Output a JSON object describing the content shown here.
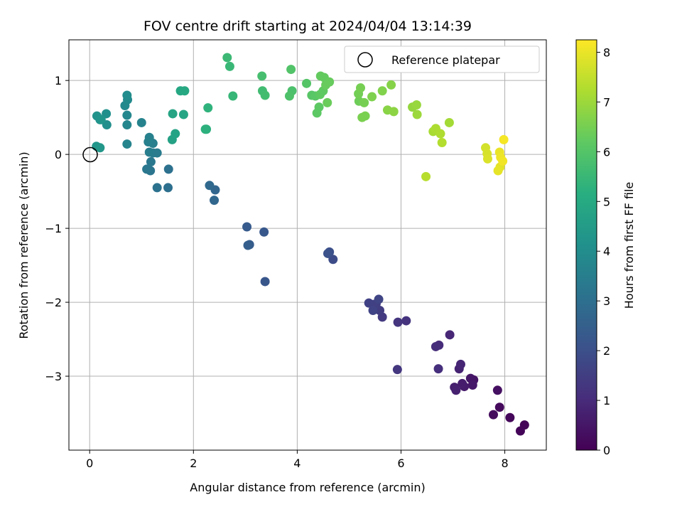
{
  "chart_data": {
    "type": "scatter",
    "title": "FOV centre drift starting at 2024/04/04 13:14:39",
    "xlabel": "Angular distance from reference (arcmin)",
    "ylabel": "Rotation from reference (arcmin)",
    "xlim": [
      -0.4,
      8.8
    ],
    "ylim": [
      -4.0,
      1.55
    ],
    "xticks": [
      0,
      2,
      4,
      6,
      8
    ],
    "yticks": [
      -3,
      -2,
      -1,
      0,
      1
    ],
    "grid": true,
    "legend": {
      "placement": "top-right",
      "entries": [
        "Reference platepar"
      ]
    },
    "reference_point": {
      "x": 0,
      "y": 0,
      "label": "Reference platepar"
    },
    "colorbar": {
      "label": "Hours from first FF file",
      "colormap": "viridis",
      "range": [
        0,
        8.25
      ],
      "ticks": [
        0,
        1,
        2,
        3,
        4,
        5,
        6,
        7,
        8
      ]
    },
    "points": [
      {
        "x": 8.38,
        "y": -3.66,
        "c": 0.05
      },
      {
        "x": 8.3,
        "y": -3.74,
        "c": 0.1
      },
      {
        "x": 8.1,
        "y": -3.56,
        "c": 0.15
      },
      {
        "x": 7.9,
        "y": -3.42,
        "c": 0.2
      },
      {
        "x": 7.78,
        "y": -3.52,
        "c": 0.25
      },
      {
        "x": 7.86,
        "y": -3.19,
        "c": 0.35
      },
      {
        "x": 7.4,
        "y": -3.05,
        "c": 0.45
      },
      {
        "x": 7.34,
        "y": -3.03,
        "c": 0.5
      },
      {
        "x": 7.38,
        "y": -3.12,
        "c": 0.55
      },
      {
        "x": 7.22,
        "y": -3.14,
        "c": 0.6
      },
      {
        "x": 7.18,
        "y": -3.1,
        "c": 0.65
      },
      {
        "x": 7.03,
        "y": -3.15,
        "c": 0.7
      },
      {
        "x": 7.06,
        "y": -3.19,
        "c": 0.75
      },
      {
        "x": 7.12,
        "y": -2.9,
        "c": 0.8
      },
      {
        "x": 7.15,
        "y": -2.84,
        "c": 0.85
      },
      {
        "x": 6.94,
        "y": -2.44,
        "c": 0.9
      },
      {
        "x": 6.73,
        "y": -2.58,
        "c": 1.0
      },
      {
        "x": 6.67,
        "y": -2.6,
        "c": 1.05
      },
      {
        "x": 6.72,
        "y": -2.9,
        "c": 1.1
      },
      {
        "x": 6.1,
        "y": -2.25,
        "c": 1.2
      },
      {
        "x": 5.94,
        "y": -2.27,
        "c": 1.25
      },
      {
        "x": 5.93,
        "y": -2.91,
        "c": 1.3
      },
      {
        "x": 5.64,
        "y": -2.2,
        "c": 1.4
      },
      {
        "x": 5.59,
        "y": -2.11,
        "c": 1.45
      },
      {
        "x": 5.52,
        "y": -2.02,
        "c": 1.5
      },
      {
        "x": 5.46,
        "y": -2.03,
        "c": 1.55
      },
      {
        "x": 5.38,
        "y": -2.01,
        "c": 1.6
      },
      {
        "x": 5.46,
        "y": -2.11,
        "c": 1.65
      },
      {
        "x": 5.57,
        "y": -1.96,
        "c": 1.7
      },
      {
        "x": 4.69,
        "y": -1.42,
        "c": 1.9
      },
      {
        "x": 4.62,
        "y": -1.32,
        "c": 2.0
      },
      {
        "x": 4.59,
        "y": -1.34,
        "c": 2.05
      },
      {
        "x": 3.38,
        "y": -1.72,
        "c": 2.2
      },
      {
        "x": 3.36,
        "y": -1.05,
        "c": 2.25
      },
      {
        "x": 3.03,
        "y": -0.98,
        "c": 2.35
      },
      {
        "x": 3.08,
        "y": -1.22,
        "c": 2.4
      },
      {
        "x": 3.05,
        "y": -1.23,
        "c": 2.45
      },
      {
        "x": 2.42,
        "y": -0.48,
        "c": 2.7
      },
      {
        "x": 2.4,
        "y": -0.62,
        "c": 2.75
      },
      {
        "x": 2.31,
        "y": -0.42,
        "c": 2.8
      },
      {
        "x": 1.51,
        "y": -0.45,
        "c": 3.0
      },
      {
        "x": 1.52,
        "y": -0.2,
        "c": 3.05
      },
      {
        "x": 1.3,
        "y": -0.45,
        "c": 3.1
      },
      {
        "x": 1.17,
        "y": -0.22,
        "c": 3.2
      },
      {
        "x": 1.1,
        "y": -0.2,
        "c": 3.25
      },
      {
        "x": 1.18,
        "y": -0.1,
        "c": 3.3
      },
      {
        "x": 1.22,
        "y": 0.02,
        "c": 3.35
      },
      {
        "x": 1.3,
        "y": 0.02,
        "c": 3.4
      },
      {
        "x": 1.15,
        "y": 0.03,
        "c": 3.45
      },
      {
        "x": 1.22,
        "y": 0.15,
        "c": 3.5
      },
      {
        "x": 1.13,
        "y": 0.17,
        "c": 3.55
      },
      {
        "x": 1.15,
        "y": 0.23,
        "c": 3.6
      },
      {
        "x": 1.0,
        "y": 0.43,
        "c": 3.65
      },
      {
        "x": 0.72,
        "y": 0.14,
        "c": 3.7
      },
      {
        "x": 0.72,
        "y": 0.4,
        "c": 3.75
      },
      {
        "x": 0.72,
        "y": 0.53,
        "c": 3.8
      },
      {
        "x": 0.68,
        "y": 0.66,
        "c": 3.85
      },
      {
        "x": 0.73,
        "y": 0.74,
        "c": 3.9
      },
      {
        "x": 0.72,
        "y": 0.8,
        "c": 3.95
      },
      {
        "x": 0.33,
        "y": 0.4,
        "c": 4.05
      },
      {
        "x": 0.32,
        "y": 0.55,
        "c": 4.1
      },
      {
        "x": 0.2,
        "y": 0.47,
        "c": 4.15
      },
      {
        "x": 0.14,
        "y": 0.52,
        "c": 4.2
      },
      {
        "x": 0.22,
        "y": 0.47,
        "c": 4.25
      },
      {
        "x": 0.13,
        "y": 0.11,
        "c": 4.3
      },
      {
        "x": 0.2,
        "y": 0.09,
        "c": 4.35
      },
      {
        "x": 1.59,
        "y": 0.2,
        "c": 4.7
      },
      {
        "x": 1.65,
        "y": 0.28,
        "c": 4.75
      },
      {
        "x": 1.6,
        "y": 0.55,
        "c": 4.8
      },
      {
        "x": 1.81,
        "y": 0.54,
        "c": 4.85
      },
      {
        "x": 1.75,
        "y": 0.86,
        "c": 4.9
      },
      {
        "x": 1.83,
        "y": 0.86,
        "c": 4.95
      },
      {
        "x": 2.25,
        "y": 0.34,
        "c": 5.2
      },
      {
        "x": 2.23,
        "y": 0.34,
        "c": 5.25
      },
      {
        "x": 2.28,
        "y": 0.63,
        "c": 5.3
      },
      {
        "x": 2.76,
        "y": 0.79,
        "c": 5.45
      },
      {
        "x": 2.7,
        "y": 1.19,
        "c": 5.5
      },
      {
        "x": 2.65,
        "y": 1.31,
        "c": 5.55
      },
      {
        "x": 3.33,
        "y": 0.86,
        "c": 5.65
      },
      {
        "x": 3.38,
        "y": 0.8,
        "c": 5.7
      },
      {
        "x": 3.32,
        "y": 1.06,
        "c": 5.75
      },
      {
        "x": 3.9,
        "y": 0.86,
        "c": 5.85
      },
      {
        "x": 3.85,
        "y": 0.79,
        "c": 5.9
      },
      {
        "x": 3.88,
        "y": 1.15,
        "c": 5.95
      },
      {
        "x": 4.18,
        "y": 0.96,
        "c": 6.0
      },
      {
        "x": 4.28,
        "y": 0.8,
        "c": 6.05
      },
      {
        "x": 4.35,
        "y": 0.79,
        "c": 6.1
      },
      {
        "x": 4.38,
        "y": 0.56,
        "c": 6.15
      },
      {
        "x": 4.42,
        "y": 0.64,
        "c": 6.15
      },
      {
        "x": 4.44,
        "y": 0.81,
        "c": 6.2
      },
      {
        "x": 4.5,
        "y": 0.86,
        "c": 6.2
      },
      {
        "x": 4.45,
        "y": 1.06,
        "c": 6.25
      },
      {
        "x": 4.52,
        "y": 1.04,
        "c": 6.25
      },
      {
        "x": 4.55,
        "y": 0.94,
        "c": 6.3
      },
      {
        "x": 4.62,
        "y": 0.98,
        "c": 6.3
      },
      {
        "x": 4.58,
        "y": 0.7,
        "c": 6.35
      },
      {
        "x": 5.19,
        "y": 0.72,
        "c": 6.4
      },
      {
        "x": 5.18,
        "y": 0.82,
        "c": 6.45
      },
      {
        "x": 5.22,
        "y": 0.9,
        "c": 6.5
      },
      {
        "x": 5.29,
        "y": 0.7,
        "c": 6.5
      },
      {
        "x": 5.25,
        "y": 0.5,
        "c": 6.55
      },
      {
        "x": 5.31,
        "y": 0.52,
        "c": 6.55
      },
      {
        "x": 5.44,
        "y": 0.78,
        "c": 6.6
      },
      {
        "x": 5.64,
        "y": 0.86,
        "c": 6.65
      },
      {
        "x": 5.81,
        "y": 0.94,
        "c": 6.7
      },
      {
        "x": 5.74,
        "y": 0.6,
        "c": 6.75
      },
      {
        "x": 5.86,
        "y": 0.58,
        "c": 6.8
      },
      {
        "x": 6.22,
        "y": 0.64,
        "c": 6.9
      },
      {
        "x": 6.3,
        "y": 0.67,
        "c": 6.95
      },
      {
        "x": 6.31,
        "y": 0.54,
        "c": 7.0
      },
      {
        "x": 6.93,
        "y": 0.43,
        "c": 7.1
      },
      {
        "x": 6.62,
        "y": 0.31,
        "c": 7.15
      },
      {
        "x": 6.67,
        "y": 0.35,
        "c": 7.2
      },
      {
        "x": 6.76,
        "y": 0.28,
        "c": 7.25
      },
      {
        "x": 6.79,
        "y": 0.16,
        "c": 7.3
      },
      {
        "x": 6.48,
        "y": -0.3,
        "c": 7.35
      },
      {
        "x": 7.63,
        "y": 0.09,
        "c": 7.7
      },
      {
        "x": 7.66,
        "y": 0.01,
        "c": 7.75
      },
      {
        "x": 7.67,
        "y": -0.06,
        "c": 7.8
      },
      {
        "x": 7.91,
        "y": -0.17,
        "c": 7.9
      },
      {
        "x": 7.87,
        "y": -0.22,
        "c": 7.95
      },
      {
        "x": 7.9,
        "y": 0.03,
        "c": 8.0
      },
      {
        "x": 7.92,
        "y": -0.04,
        "c": 8.05
      },
      {
        "x": 7.96,
        "y": -0.09,
        "c": 8.1
      },
      {
        "x": 7.98,
        "y": 0.2,
        "c": 8.15
      }
    ]
  }
}
